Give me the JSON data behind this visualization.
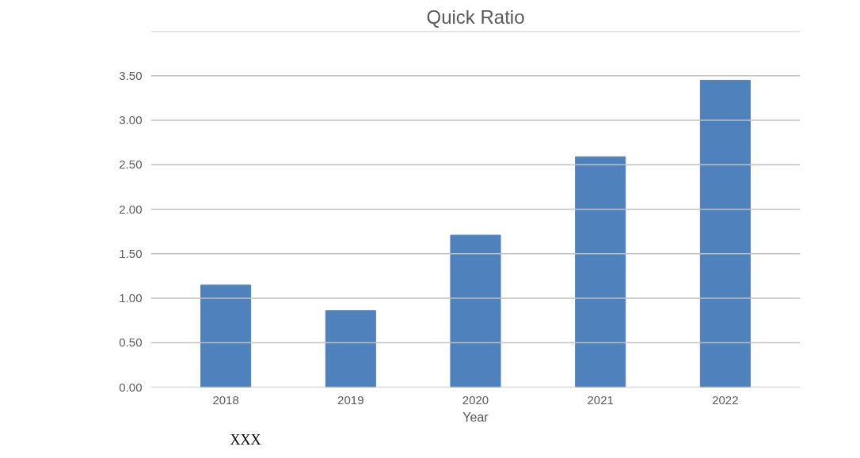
{
  "chart_data": {
    "type": "bar",
    "title": "Quick Ratio",
    "xlabel": "Year",
    "categories": [
      "2018",
      "2019",
      "2020",
      "2021",
      "2022"
    ],
    "values": [
      1.15,
      0.86,
      1.71,
      2.59,
      3.45
    ],
    "color": "#4f81bd",
    "ylim": [
      0,
      4
    ],
    "yticks": [
      {
        "value": 0,
        "label": "0.00"
      },
      {
        "value": 0.5,
        "label": "0.50"
      },
      {
        "value": 1,
        "label": "1.00"
      },
      {
        "value": 1.5,
        "label": "1.50"
      },
      {
        "value": 2,
        "label": "2.00"
      },
      {
        "value": 2.5,
        "label": "2.50"
      },
      {
        "value": 3,
        "label": "3.00"
      },
      {
        "value": 3.5,
        "label": "3.50"
      },
      {
        "value": 4,
        "label": null
      }
    ],
    "grid": "y",
    "annotations": [
      "XXX"
    ]
  }
}
